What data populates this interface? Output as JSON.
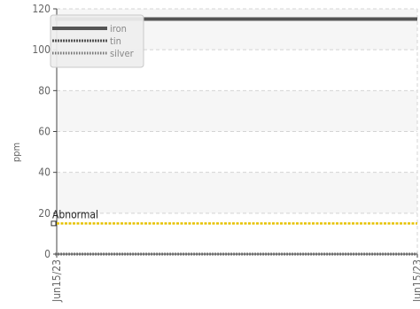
{
  "chart_data": {
    "type": "line",
    "title": "",
    "xlabel": "",
    "ylabel": "ppm",
    "ylim": [
      0,
      120
    ],
    "yticks": [
      0,
      20,
      40,
      60,
      80,
      100,
      120
    ],
    "xticks": [
      "Jun15/23",
      "Jun15/23"
    ],
    "grid": true,
    "legend_position": "top-left",
    "series": [
      {
        "name": "iron",
        "value": 115,
        "color": "#555555",
        "style": "solid"
      },
      {
        "name": "tin",
        "value": 0,
        "color": "#555555",
        "style": "dense-dashed"
      },
      {
        "name": "silver",
        "value": 0,
        "color": "#777777",
        "style": "fine-dashed"
      }
    ],
    "threshold": {
      "label": "Abnormal",
      "value": 15,
      "color": "#e6c200"
    }
  }
}
